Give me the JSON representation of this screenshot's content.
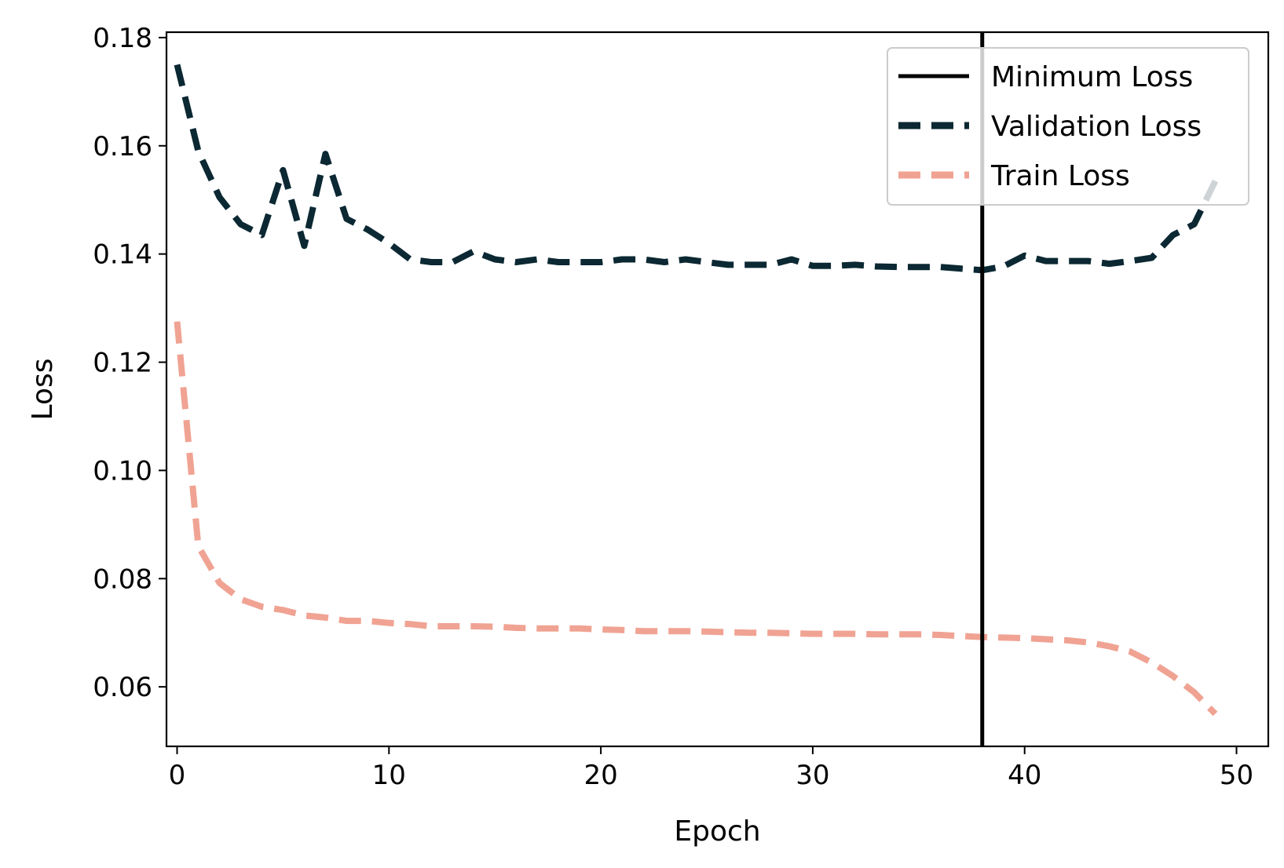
{
  "chart_data": {
    "type": "line",
    "title": "",
    "xlabel": "Epoch",
    "ylabel": "Loss",
    "xlim": [
      -0.5,
      51.5
    ],
    "ylim": [
      0.049,
      0.181
    ],
    "xticks": [
      0,
      10,
      20,
      30,
      40,
      50
    ],
    "xtick_labels": [
      "0",
      "10",
      "20",
      "30",
      "40",
      "50"
    ],
    "yticks": [
      0.06,
      0.08,
      0.1,
      0.12,
      0.14,
      0.16,
      0.18
    ],
    "ytick_labels": [
      "0.06",
      "0.08",
      "0.10",
      "0.12",
      "0.14",
      "0.16",
      "0.18"
    ],
    "grid": false,
    "legend_position": "top-right",
    "x": [
      0,
      1,
      2,
      3,
      4,
      5,
      6,
      7,
      8,
      9,
      10,
      11,
      12,
      13,
      14,
      15,
      16,
      17,
      18,
      19,
      20,
      21,
      22,
      23,
      24,
      25,
      26,
      27,
      28,
      29,
      30,
      31,
      32,
      33,
      34,
      35,
      36,
      37,
      38,
      39,
      40,
      41,
      42,
      43,
      44,
      45,
      46,
      47,
      48,
      49
    ],
    "series": [
      {
        "name": "Validation Loss",
        "color": "#0b2833",
        "style": "dashed",
        "values": [
          0.175,
          0.159,
          0.1505,
          0.1455,
          0.1435,
          0.1555,
          0.1415,
          0.1585,
          0.1465,
          0.1445,
          0.142,
          0.139,
          0.1385,
          0.1385,
          0.1405,
          0.139,
          0.1385,
          0.139,
          0.1385,
          0.1385,
          0.1385,
          0.139,
          0.139,
          0.1385,
          0.139,
          0.1385,
          0.138,
          0.138,
          0.138,
          0.139,
          0.1378,
          0.1378,
          0.138,
          0.1377,
          0.1376,
          0.1376,
          0.1376,
          0.1373,
          0.137,
          0.1377,
          0.1397,
          0.1387,
          0.1387,
          0.1387,
          0.1382,
          0.1387,
          0.1393,
          0.1435,
          0.1455,
          0.1535
        ]
      },
      {
        "name": "Train Loss",
        "color": "#f0a393",
        "style": "dashed",
        "values": [
          0.1275,
          0.086,
          0.0792,
          0.0762,
          0.0748,
          0.0742,
          0.0732,
          0.0728,
          0.0722,
          0.0722,
          0.0718,
          0.0716,
          0.0712,
          0.0712,
          0.0712,
          0.0711,
          0.0709,
          0.0708,
          0.0708,
          0.0708,
          0.0706,
          0.0705,
          0.0703,
          0.0703,
          0.0703,
          0.0702,
          0.0701,
          0.07,
          0.07,
          0.0699,
          0.0698,
          0.0698,
          0.0698,
          0.0697,
          0.0697,
          0.0697,
          0.0696,
          0.0694,
          0.0692,
          0.0691,
          0.069,
          0.0688,
          0.0686,
          0.0682,
          0.0675,
          0.0665,
          0.0645,
          0.062,
          0.059,
          0.055
        ]
      }
    ],
    "vlines": [
      {
        "name": "Minimum Loss",
        "x": 38,
        "color": "#000000",
        "style": "solid"
      }
    ],
    "legend": [
      "Minimum Loss",
      "Validation Loss",
      "Train Loss"
    ]
  }
}
